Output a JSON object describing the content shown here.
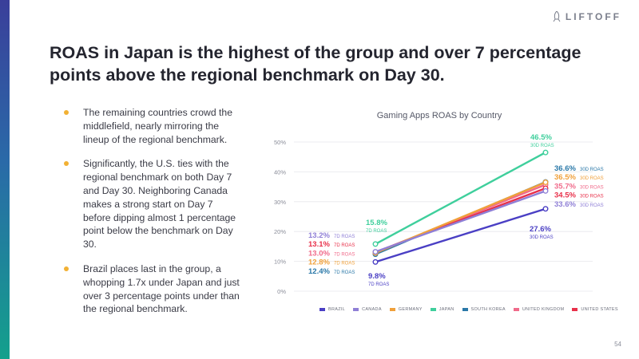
{
  "brand": {
    "name": "LIFTOFF"
  },
  "title": "ROAS in Japan is the highest of the group and over 7 percentage points above the regional benchmark on Day 30.",
  "bullets": [
    "The remaining countries crowd the middlefield, nearly mirroring the lineup of the regional benchmark.",
    "Significantly, the U.S. ties with the regional benchmark on both Day 7 and Day 30. Neighboring Canada makes a strong start on Day 7 before dipping almost 1 percentage point below the benchmark on Day 30.",
    "Brazil places last in the group, a whopping 1.7x under Japan and just over 3 percentage points under than the regional benchmark."
  ],
  "page_number": "54",
  "chart_data": {
    "type": "line",
    "title": "Gaming Apps ROAS by Country",
    "x": [
      "Day 7",
      "Day 30"
    ],
    "ylim": [
      0,
      50
    ],
    "yticks": [
      0,
      10,
      20,
      30,
      40,
      50
    ],
    "ytick_labels": [
      "0%",
      "10%",
      "20%",
      "30%",
      "40%",
      "50%"
    ],
    "day7_tag": "7D ROAS",
    "day30_tag": "30D ROAS",
    "series": [
      {
        "name": "BRAZIL",
        "color": "#4a3fc4",
        "values": [
          9.8,
          27.6
        ],
        "labels": [
          "9.8%",
          "27.6%"
        ]
      },
      {
        "name": "CANADA",
        "color": "#8f7fd6",
        "values": [
          13.2,
          33.6
        ],
        "labels": [
          "13.2%",
          "33.6%"
        ]
      },
      {
        "name": "GERMANY",
        "color": "#f0a03a",
        "values": [
          12.8,
          36.5
        ],
        "labels": [
          "12.8%",
          "36.5%"
        ]
      },
      {
        "name": "JAPAN",
        "color": "#3fcf9c",
        "values": [
          15.8,
          46.5
        ],
        "labels": [
          "15.8%",
          "46.5%"
        ]
      },
      {
        "name": "SOUTH KOREA",
        "color": "#2a78a8",
        "values": [
          12.4,
          36.6
        ],
        "labels": [
          "12.4%",
          "36.6%"
        ]
      },
      {
        "name": "UNITED KINGDOM",
        "color": "#f06a8a",
        "values": [
          13.0,
          35.7
        ],
        "labels": [
          "13.0%",
          "35.7%"
        ]
      },
      {
        "name": "UNITED STATES",
        "color": "#e8304a",
        "values": [
          13.1,
          34.5
        ],
        "labels": [
          "13.1%",
          "34.5%"
        ]
      }
    ]
  }
}
